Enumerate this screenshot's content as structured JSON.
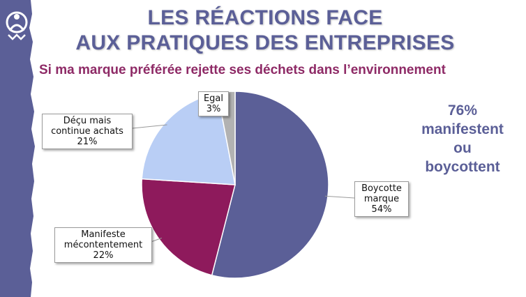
{
  "title": {
    "line1": "LES RÉACTIONS FACE",
    "line2": "AUX PRATIQUES DES ENTREPRISES"
  },
  "subtitle": "Si ma marque préférée rejette ses déchets dans l’environnement",
  "callout": {
    "percent": "76%",
    "line1": "manifestent",
    "line2": "ou",
    "line3": "boycottent"
  },
  "colors": {
    "band": "#5b5f97",
    "boycotte": "#5b5f97",
    "manifeste": "#8e1a5c",
    "decu": "#b9cef5",
    "egal": "#b2b2b2"
  },
  "chart_data": {
    "type": "pie",
    "slices": [
      {
        "name": "Boycotte marque",
        "value": 54,
        "label_lines": [
          "Boycotte",
          "marque",
          "54%"
        ],
        "color": "#5b5f97"
      },
      {
        "name": "Manifeste mécontentement",
        "value": 22,
        "label_lines": [
          "Manifeste",
          "mécontentement",
          "22%"
        ],
        "color": "#8e1a5c"
      },
      {
        "name": "Déçu mais continue achats",
        "value": 21,
        "label_lines": [
          "Déçu mais",
          "continue achats",
          "21%"
        ],
        "color": "#b9cef5"
      },
      {
        "name": "Egal",
        "value": 3,
        "label_lines": [
          "Egal",
          "3%"
        ],
        "color": "#b2b2b2"
      }
    ]
  }
}
